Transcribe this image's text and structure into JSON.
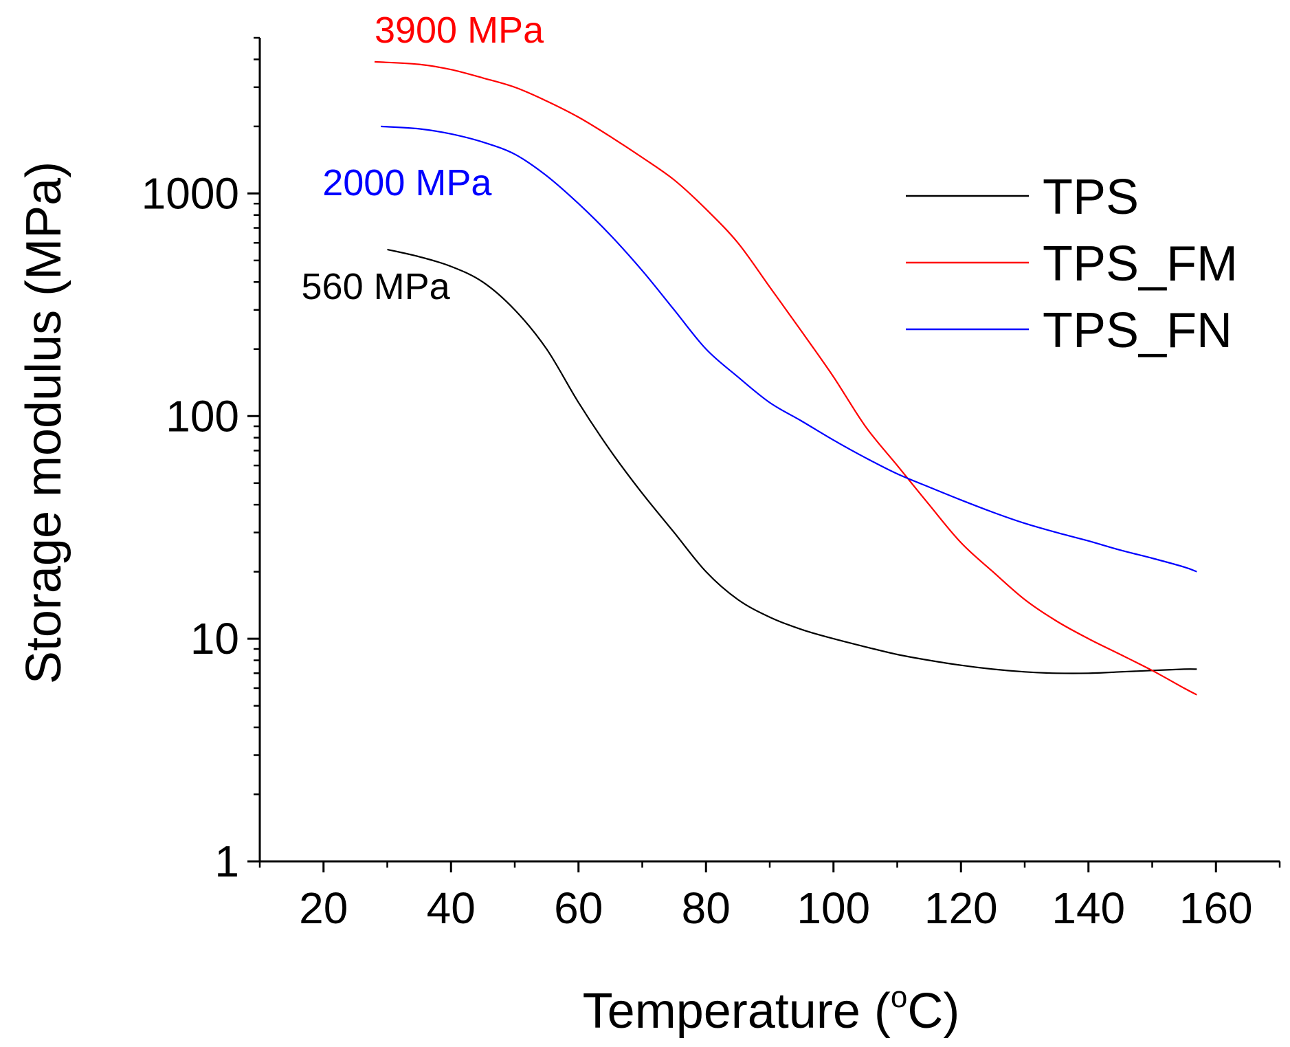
{
  "chart_data": {
    "type": "line",
    "title": "",
    "xlabel": "Temperature (",
    "xlabel_unit_sup": "o",
    "xlabel_unit": "C)",
    "ylabel": "Storage modulus (MPa)",
    "xlim": [
      10,
      170
    ],
    "ylim": [
      1,
      5000
    ],
    "yscale": "log",
    "xticks": [
      20,
      40,
      60,
      80,
      100,
      120,
      140,
      160
    ],
    "xtick_labels": [
      "20",
      "40",
      "60",
      "80",
      "100",
      "120",
      "140",
      "160"
    ],
    "yticks": [
      1,
      10,
      100,
      1000
    ],
    "ytick_labels": [
      "1",
      "10",
      "100",
      "1000"
    ],
    "legend_position": "top-right",
    "series": [
      {
        "name": "TPS",
        "color": "#000000",
        "x": [
          30,
          35,
          40,
          45,
          50,
          55,
          60,
          65,
          70,
          75,
          80,
          85,
          90,
          95,
          100,
          105,
          110,
          115,
          120,
          125,
          130,
          135,
          140,
          145,
          150,
          155,
          157
        ],
        "y": [
          560,
          520,
          470,
          400,
          300,
          200,
          115,
          70,
          45,
          30,
          20,
          15,
          12.5,
          11,
          10,
          9.2,
          8.5,
          8.0,
          7.6,
          7.3,
          7.1,
          7.0,
          7.0,
          7.1,
          7.2,
          7.3,
          7.3
        ]
      },
      {
        "name": "TPS_FM",
        "color": "#ff0000",
        "x": [
          28,
          35,
          40,
          45,
          50,
          55,
          60,
          65,
          70,
          75,
          80,
          85,
          90,
          95,
          100,
          105,
          110,
          115,
          120,
          125,
          130,
          135,
          140,
          145,
          150,
          155,
          157
        ],
        "y": [
          3900,
          3800,
          3600,
          3300,
          3000,
          2600,
          2200,
          1800,
          1450,
          1150,
          850,
          600,
          380,
          240,
          150,
          90,
          60,
          40,
          27,
          20,
          15,
          12,
          10,
          8.5,
          7.2,
          6.0,
          5.6
        ]
      },
      {
        "name": "TPS_FN",
        "color": "#0000ff",
        "x": [
          29,
          35,
          40,
          45,
          50,
          55,
          60,
          65,
          70,
          75,
          80,
          85,
          90,
          95,
          100,
          105,
          110,
          115,
          120,
          125,
          130,
          135,
          140,
          145,
          150,
          155,
          157
        ],
        "y": [
          2000,
          1950,
          1850,
          1700,
          1500,
          1200,
          900,
          650,
          450,
          300,
          200,
          150,
          115,
          95,
          78,
          65,
          55,
          48,
          42,
          37,
          33,
          30,
          27.5,
          25,
          23,
          21,
          20
        ]
      }
    ],
    "annotations": [
      {
        "text": "3900 MPa",
        "color": "#ff0000",
        "x": 28,
        "y": 3900
      },
      {
        "text": "2000 MPa",
        "color": "#0000ff",
        "x": 29,
        "y": 2000
      },
      {
        "text": "560 MPa",
        "color": "#000000",
        "x": 30,
        "y": 560
      }
    ]
  }
}
